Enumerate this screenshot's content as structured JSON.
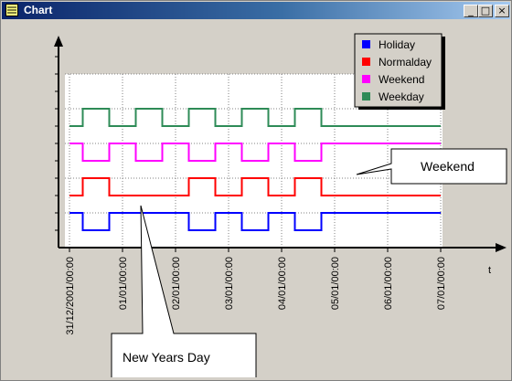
{
  "window": {
    "title": "Chart",
    "buttons": {
      "minimize": "_",
      "maximize": "□",
      "close": "×"
    }
  },
  "chart_data": {
    "type": "line",
    "title": "",
    "xlabel": "t",
    "ylabel": "",
    "x_tick_labels": [
      "31/12/2001/00:00",
      "01/01/00:00",
      "02/01/00:00",
      "03/01/00:00",
      "04/01/00:00",
      "05/01/00:00",
      "06/01/00:00",
      "07/01/00:00"
    ],
    "legend_position": "top-right",
    "grid": true,
    "series": [
      {
        "name": "Holiday",
        "color": "#0000ff",
        "base": 0.5,
        "amp": 0.5,
        "points": [
          [
            0,
            1
          ],
          [
            0.25,
            1
          ],
          [
            0.25,
            0
          ],
          [
            0.75,
            0
          ],
          [
            0.75,
            1
          ],
          [
            2.25,
            1
          ],
          [
            2.25,
            0
          ],
          [
            2.75,
            0
          ],
          [
            2.75,
            1
          ],
          [
            3.25,
            1
          ],
          [
            3.25,
            0
          ],
          [
            3.75,
            0
          ],
          [
            3.75,
            1
          ],
          [
            4.25,
            1
          ],
          [
            4.25,
            0
          ],
          [
            4.75,
            0
          ],
          [
            4.75,
            1
          ],
          [
            7,
            1
          ]
        ]
      },
      {
        "name": "Normalday",
        "color": "#ff0000",
        "base": 1.5,
        "amp": 0.5,
        "points": [
          [
            0,
            0
          ],
          [
            0.25,
            0
          ],
          [
            0.25,
            1
          ],
          [
            0.75,
            1
          ],
          [
            0.75,
            0
          ],
          [
            2.25,
            0
          ],
          [
            2.25,
            1
          ],
          [
            2.75,
            1
          ],
          [
            2.75,
            0
          ],
          [
            3.25,
            0
          ],
          [
            3.25,
            1
          ],
          [
            3.75,
            1
          ],
          [
            3.75,
            0
          ],
          [
            4.25,
            0
          ],
          [
            4.25,
            1
          ],
          [
            4.75,
            1
          ],
          [
            4.75,
            0
          ],
          [
            7,
            0
          ]
        ]
      },
      {
        "name": "Weekend",
        "color": "#ff00ff",
        "base": 2.5,
        "amp": 0.5,
        "points": [
          [
            0,
            1
          ],
          [
            0.25,
            1
          ],
          [
            0.25,
            0
          ],
          [
            0.75,
            0
          ],
          [
            0.75,
            1
          ],
          [
            1.25,
            1
          ],
          [
            1.25,
            0
          ],
          [
            1.75,
            0
          ],
          [
            1.75,
            1
          ],
          [
            2.25,
            1
          ],
          [
            2.25,
            0
          ],
          [
            2.75,
            0
          ],
          [
            2.75,
            1
          ],
          [
            3.25,
            1
          ],
          [
            3.25,
            0
          ],
          [
            3.75,
            0
          ],
          [
            3.75,
            1
          ],
          [
            4.25,
            1
          ],
          [
            4.25,
            0
          ],
          [
            4.75,
            0
          ],
          [
            4.75,
            1
          ],
          [
            7,
            1
          ]
        ]
      },
      {
        "name": "Weekday",
        "color": "#2e8b57",
        "base": 3.5,
        "amp": 0.5,
        "points": [
          [
            0,
            0
          ],
          [
            0.25,
            0
          ],
          [
            0.25,
            1
          ],
          [
            0.75,
            1
          ],
          [
            0.75,
            0
          ],
          [
            1.25,
            0
          ],
          [
            1.25,
            1
          ],
          [
            1.75,
            1
          ],
          [
            1.75,
            0
          ],
          [
            2.25,
            0
          ],
          [
            2.25,
            1
          ],
          [
            2.75,
            1
          ],
          [
            2.75,
            0
          ],
          [
            3.25,
            0
          ],
          [
            3.25,
            1
          ],
          [
            3.75,
            1
          ],
          [
            3.75,
            0
          ],
          [
            4.25,
            0
          ],
          [
            4.25,
            1
          ],
          [
            4.75,
            1
          ],
          [
            4.75,
            0
          ],
          [
            7,
            0
          ]
        ]
      }
    ],
    "annotations": [
      {
        "text": "Weekend",
        "target": [
          5.3,
          2.6
        ]
      },
      {
        "text": "New Years Day",
        "target": [
          1.35,
          1.2
        ]
      }
    ]
  }
}
